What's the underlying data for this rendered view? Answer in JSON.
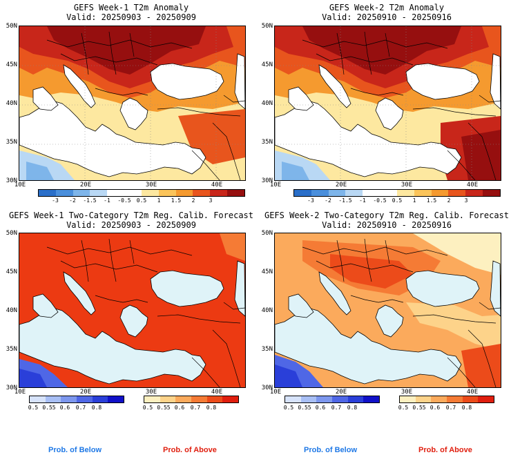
{
  "panels": [
    {
      "title_line1": "GEFS Week-1 T2m Anomaly",
      "title_line2": "Valid: 20250903 - 20250909"
    },
    {
      "title_line1": "GEFS Week-2 T2m Anomaly",
      "title_line2": "Valid: 20250910 - 20250916"
    },
    {
      "title_line1": "GEFS Week-1 Two-Category T2m Reg. Calib. Forecast",
      "title_line2": "Valid: 20250903 - 20250909"
    },
    {
      "title_line1": "GEFS Week-2 Two-Category T2m Reg. Calib. Forecast",
      "title_line2": "Valid: 20250910 - 20250916"
    }
  ],
  "axes": {
    "lat_labels": [
      "50N",
      "45N",
      "40N",
      "35N",
      "30N"
    ],
    "lon_labels": [
      "10E",
      "20E",
      "30E",
      "40E"
    ]
  },
  "anomaly_colorbar": {
    "labels": [
      "-3",
      "-2",
      "-1.5",
      "-1",
      "-0.5",
      "0.5",
      "1",
      "1.5",
      "2",
      "3"
    ],
    "colors": [
      "#2a6fc9",
      "#4a8fdc",
      "#7eb5ea",
      "#b9d8f4",
      "#ffffff",
      "#ffffff",
      "#fde8a0",
      "#fbc45a",
      "#f59a2f",
      "#e8551d",
      "#c8261a",
      "#960f0f"
    ]
  },
  "prob_below_colorbar": {
    "labels": [
      "0.5",
      "0.55",
      "0.6",
      "0.7",
      "0.8"
    ],
    "colors": [
      "#d7e3fb",
      "#a8bff5",
      "#7d97ee",
      "#4f67e6",
      "#2a3fd9",
      "#1010c8"
    ]
  },
  "prob_above_colorbar": {
    "labels": [
      "0.5",
      "0.55",
      "0.6",
      "0.7",
      "0.8"
    ],
    "colors": [
      "#fdf0c0",
      "#fdd38a",
      "#fbaa5c",
      "#f57b35",
      "#ec4b1a",
      "#e01e0e"
    ]
  },
  "prob_labels": {
    "below": "Prob. of Below",
    "above": "Prob. of Above",
    "below_color": "#1e78e6",
    "above_color": "#e01e0e"
  },
  "colors": {
    "sea": "#dff3f8",
    "warm_strong": "#ec3a12",
    "warm_light": "#fbb37c"
  }
}
